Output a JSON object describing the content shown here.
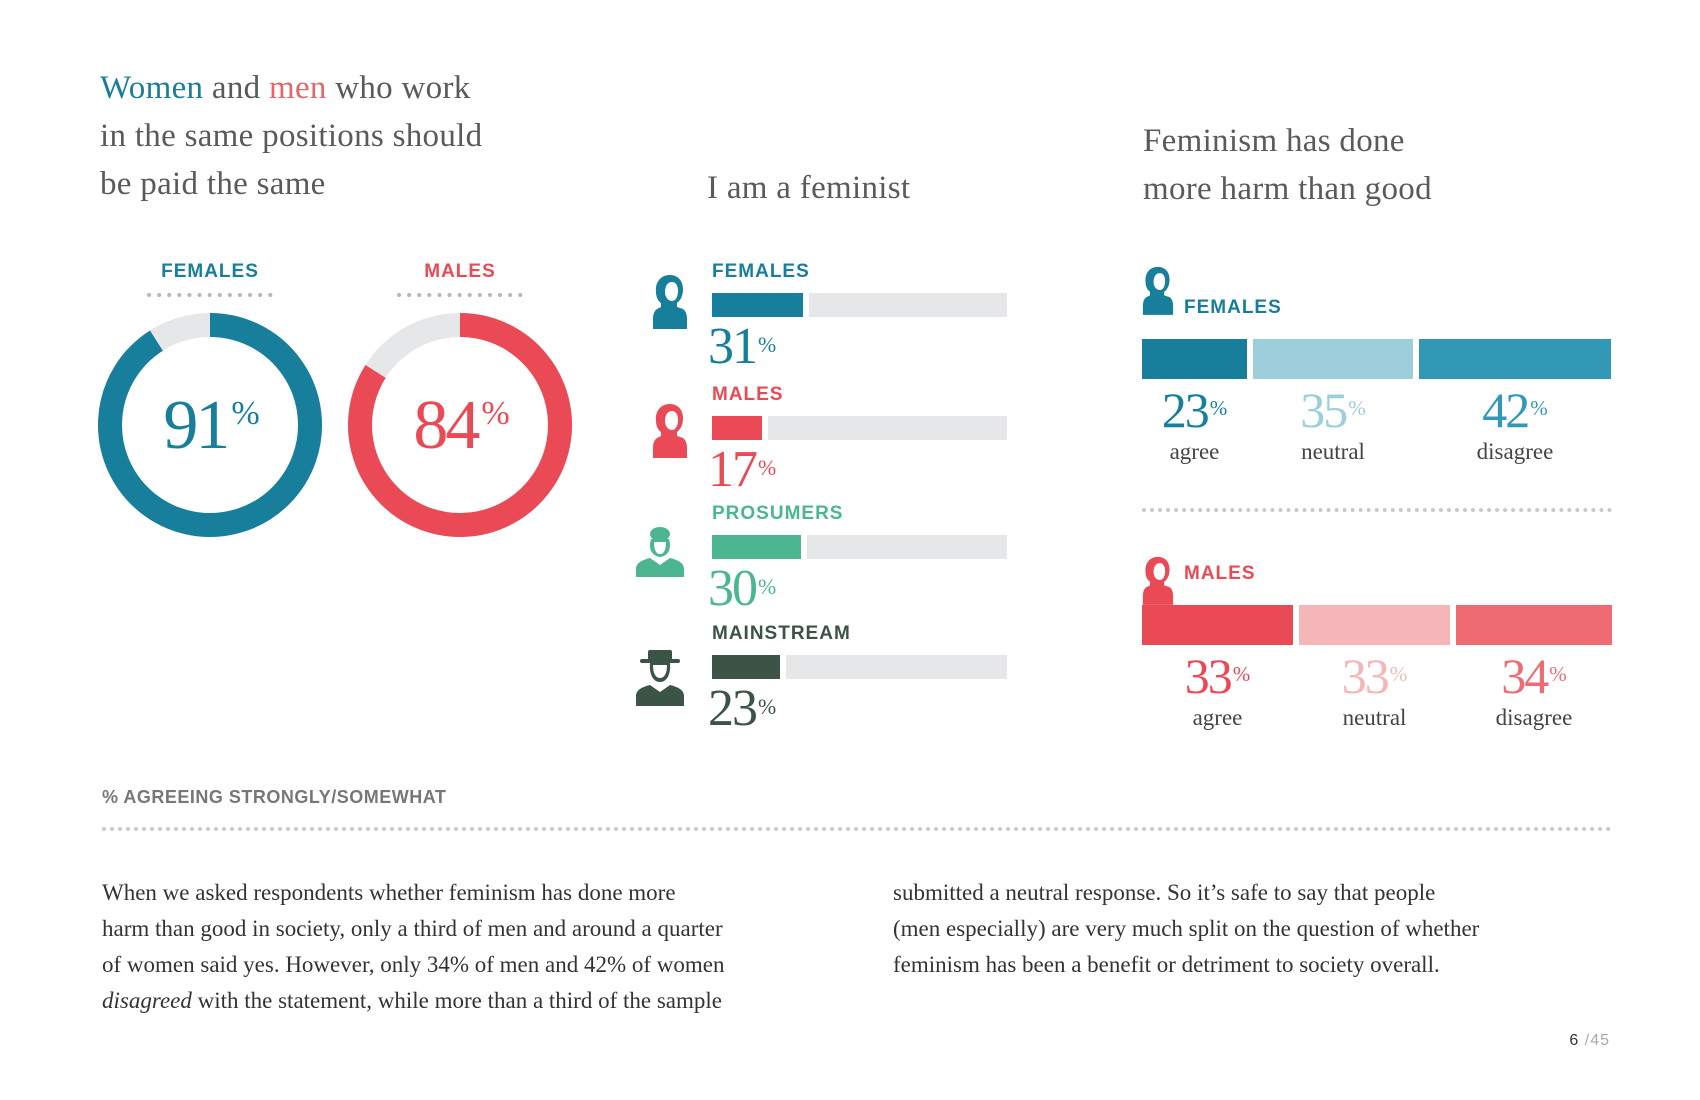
{
  "left_panel": {
    "title_word_women": "Women",
    "title_and": " and ",
    "title_word_men": "men",
    "title_rest1": " who work",
    "title_line2": "in the same positions should",
    "title_line3": "be paid the same",
    "footnote": "% AGREEING STRONGLY/SOMEWHAT"
  },
  "middle_panel": {
    "title": "I am a feminist"
  },
  "right_panel": {
    "title_line1": "Feminism has done",
    "title_line2": "more harm than good"
  },
  "colors": {
    "female": "#177f9b",
    "female_light": "#9ccedb",
    "female_mid": "#3199b6",
    "male": "#ea4a55",
    "male_light": "#f4b6b8",
    "male_mid": "#ef6b74",
    "prosumers": "#4bb68f",
    "mainstream": "#3b5446",
    "track": "#e6e7e9"
  },
  "chart_data": [
    {
      "type": "pie",
      "title": "Women and men who work in the same positions should be paid the same",
      "note": "% AGREEING STRONGLY/SOMEWHAT",
      "series": [
        {
          "name": "FEMALES",
          "value": 91,
          "unit": "%"
        },
        {
          "name": "MALES",
          "value": 84,
          "unit": "%"
        }
      ]
    },
    {
      "type": "bar",
      "title": "I am a feminist",
      "categories": [
        "FEMALES",
        "MALES",
        "PROSUMERS",
        "MAINSTREAM"
      ],
      "values": [
        31,
        17,
        30,
        23
      ],
      "unit": "%",
      "ylim": [
        0,
        100
      ]
    },
    {
      "type": "bar",
      "title": "Feminism has done more harm than good",
      "stacked": true,
      "groups": [
        {
          "name": "FEMALES",
          "segments": [
            {
              "label": "agree",
              "value": 23
            },
            {
              "label": "neutral",
              "value": 35
            },
            {
              "label": "disagree",
              "value": 42
            }
          ]
        },
        {
          "name": "MALES",
          "segments": [
            {
              "label": "agree",
              "value": 33
            },
            {
              "label": "neutral",
              "value": 33
            },
            {
              "label": "disagree",
              "value": 34
            }
          ]
        }
      ],
      "unit": "%"
    }
  ],
  "body": {
    "col1_l1": "When we asked respondents whether feminism has done more",
    "col1_l2": "harm than good in society, only a third of men and around a quarter",
    "col1_l3": "of women said yes. However, only 34% of men and 42% of women",
    "col1_l4_em": "disagreed",
    "col1_l4_rest": " with the statement, while more than a third of the sample",
    "col2_l1": "submitted a neutral response. So it’s safe to say that people",
    "col2_l2": "(men especially) are very much split on the question of whether",
    "col2_l3": "feminism has been a benefit or detriment to society overall."
  },
  "page": {
    "current": "6",
    "separator": " /",
    "total": "45"
  }
}
